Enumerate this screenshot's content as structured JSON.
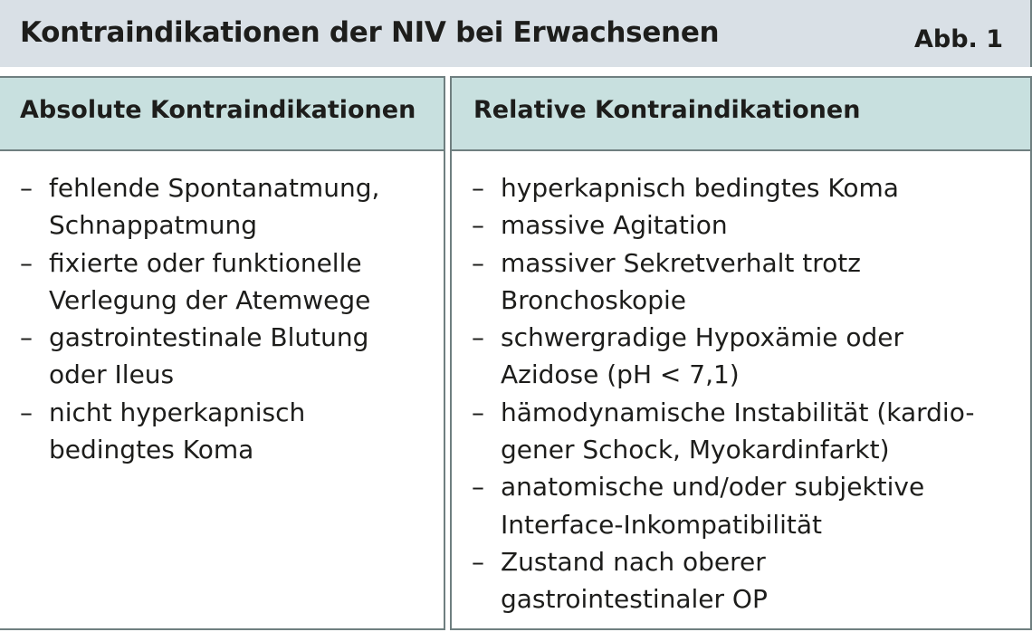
{
  "header": {
    "title": "Kontraindikationen der NIV bei Erwachsenen",
    "figure_label": "Abb. 1"
  },
  "colors": {
    "title_bg": "#d9e0e6",
    "column_header_bg": "#c8e0df",
    "border": "#6f7f80"
  },
  "absolute": {
    "heading": "Absolute Kontraindikationen",
    "items": [
      [
        "fehlende Spontanatmung,",
        "Schnappatmung"
      ],
      [
        "fixierte oder funktionelle",
        "Verlegung der Atemwege"
      ],
      [
        "gastrointestinale Blutung",
        "oder Ileus"
      ],
      [
        "nicht hyperkapnisch",
        "bedingtes Koma"
      ]
    ]
  },
  "relative": {
    "heading": "Relative Kontraindikationen",
    "items": [
      [
        "hyperkapnisch bedingtes Koma"
      ],
      [
        "massive Agitation"
      ],
      [
        "massiver Sekretverhalt trotz",
        "Bronchoskopie"
      ],
      [
        "schwergradige Hypoxämie oder",
        "Azidose (pH < 7,1)"
      ],
      [
        "hämodynamische Instabilität (kardio-",
        "gener Schock, Myokardinfarkt)"
      ],
      [
        "anatomische und/oder subjektive",
        "Interface-Inkompatibilität"
      ],
      [
        "Zustand nach oberer",
        "gastrointestinaler OP"
      ]
    ]
  },
  "bullet": "–"
}
